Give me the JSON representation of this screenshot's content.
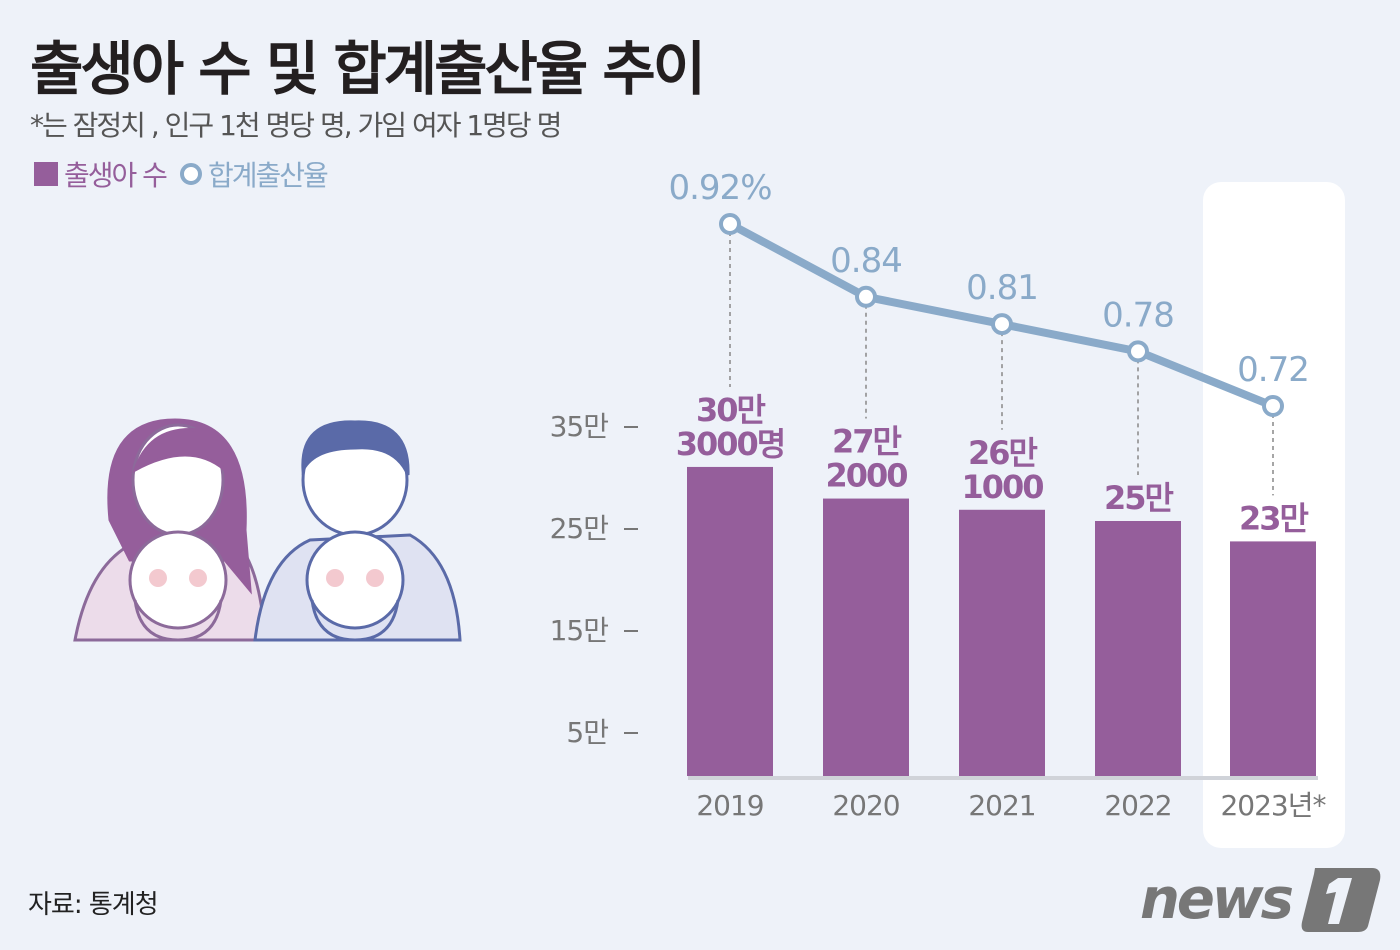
{
  "title": "출생아 수 및 합계출산율 추이",
  "subtitle": "*는 잠정치 , 인구 1천 명당 명, 가임 여자 1명당 명",
  "source": "자료: 통계청",
  "logo_text": "news1",
  "colors": {
    "bar": "#955e9b",
    "line": "#8aaac9",
    "background": "#eef2f9",
    "highlight": "#ffffff"
  },
  "chart_data": {
    "type": "bar+line",
    "categories": [
      "2019",
      "2020",
      "2021",
      "2022",
      "2023년*"
    ],
    "highlighted_category": "2023년*",
    "y_ticks": [
      {
        "value": 5,
        "label": "5만"
      },
      {
        "value": 15,
        "label": "15만"
      },
      {
        "value": 25,
        "label": "25만"
      },
      {
        "value": 35,
        "label": "35만"
      }
    ],
    "series": [
      {
        "name": "출생아 수",
        "type": "bar",
        "unit": "만 명",
        "values": [
          30.3,
          27.2,
          26.1,
          25,
          23
        ],
        "labels": [
          [
            "30만",
            "3000명"
          ],
          [
            "27만",
            "2000"
          ],
          [
            "26만",
            "1000"
          ],
          [
            "25만"
          ],
          [
            "23만"
          ]
        ]
      },
      {
        "name": "합계출산율",
        "type": "line",
        "values": [
          0.92,
          0.84,
          0.81,
          0.78,
          0.72
        ],
        "labels": [
          "0.92%",
          "0.84",
          "0.81",
          "0.78",
          "0.72"
        ]
      }
    ]
  }
}
